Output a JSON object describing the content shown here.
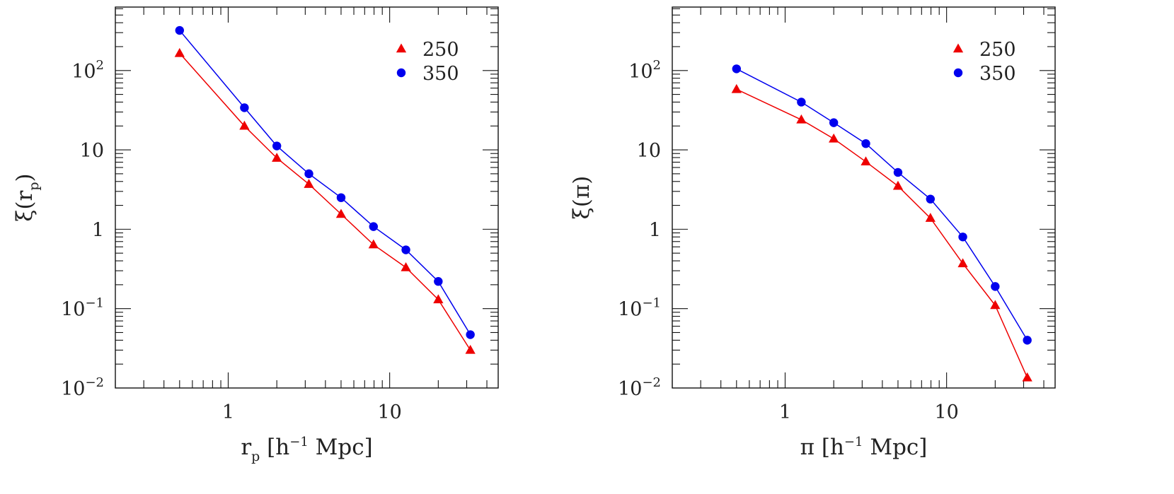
{
  "chart_data": [
    {
      "type": "line",
      "xlabel": {
        "main": "r",
        "sub": "p",
        "rest": " [h",
        "sup": "−1",
        "tail": " Mpc]"
      },
      "ylabel": {
        "main": "ξ(r",
        "sub": "p",
        "tail": ")"
      },
      "xscale": "log",
      "yscale": "log",
      "xlim": [
        0.2,
        47
      ],
      "ylim": [
        0.01,
        630
      ],
      "x_ticks": [
        {
          "value": 1,
          "label": "1"
        },
        {
          "value": 10,
          "label": "10"
        }
      ],
      "y_ticks": [
        {
          "value": 0.01,
          "base": "10",
          "exp": "−2"
        },
        {
          "value": 0.1,
          "base": "10",
          "exp": "−1"
        },
        {
          "value": 1,
          "base": "1",
          "exp": ""
        },
        {
          "value": 10,
          "base": "10",
          "exp": ""
        },
        {
          "value": 100,
          "base": "10",
          "exp": "2"
        }
      ],
      "legend_position": "top-right",
      "series": [
        {
          "name": "250",
          "color": "#ee0000",
          "marker": "triangle",
          "x": [
            0.5,
            1.26,
            2.0,
            3.16,
            5.0,
            7.94,
            12.6,
            20.0,
            31.6
          ],
          "y": [
            165,
            20,
            7.9,
            3.7,
            1.55,
            0.64,
            0.33,
            0.13,
            0.03
          ]
        },
        {
          "name": "350",
          "color": "#0000ee",
          "marker": "circle",
          "x": [
            0.5,
            1.26,
            2.0,
            3.16,
            5.0,
            7.94,
            12.6,
            20.0,
            31.6
          ],
          "y": [
            320,
            34,
            11.2,
            5.0,
            2.5,
            1.08,
            0.55,
            0.22,
            0.047
          ]
        }
      ]
    },
    {
      "type": "line",
      "xlabel": {
        "main": "π",
        "sub": "",
        "rest": " [h",
        "sup": "−1",
        "tail": " Mpc]"
      },
      "ylabel": {
        "main": "ξ(π",
        "sub": "",
        "tail": ")"
      },
      "xscale": "log",
      "yscale": "log",
      "xlim": [
        0.2,
        47
      ],
      "ylim": [
        0.01,
        630
      ],
      "x_ticks": [
        {
          "value": 1,
          "label": "1"
        },
        {
          "value": 10,
          "label": "10"
        }
      ],
      "y_ticks": [
        {
          "value": 0.01,
          "base": "10",
          "exp": "−2"
        },
        {
          "value": 0.1,
          "base": "10",
          "exp": "−1"
        },
        {
          "value": 1,
          "base": "1",
          "exp": ""
        },
        {
          "value": 10,
          "base": "10",
          "exp": ""
        },
        {
          "value": 100,
          "base": "10",
          "exp": "2"
        }
      ],
      "legend_position": "top-right",
      "series": [
        {
          "name": "250",
          "color": "#ee0000",
          "marker": "triangle",
          "x": [
            0.5,
            1.26,
            2.0,
            3.16,
            5.0,
            7.94,
            12.6,
            20.0,
            31.6
          ],
          "y": [
            58,
            24,
            13.8,
            7.1,
            3.5,
            1.38,
            0.37,
            0.11,
            0.0135
          ]
        },
        {
          "name": "350",
          "color": "#0000ee",
          "marker": "circle",
          "x": [
            0.5,
            1.26,
            2.0,
            3.16,
            5.0,
            7.94,
            12.6,
            20.0,
            31.6
          ],
          "y": [
            105,
            40,
            22,
            12,
            5.2,
            2.4,
            0.8,
            0.19,
            0.04
          ]
        }
      ]
    }
  ]
}
